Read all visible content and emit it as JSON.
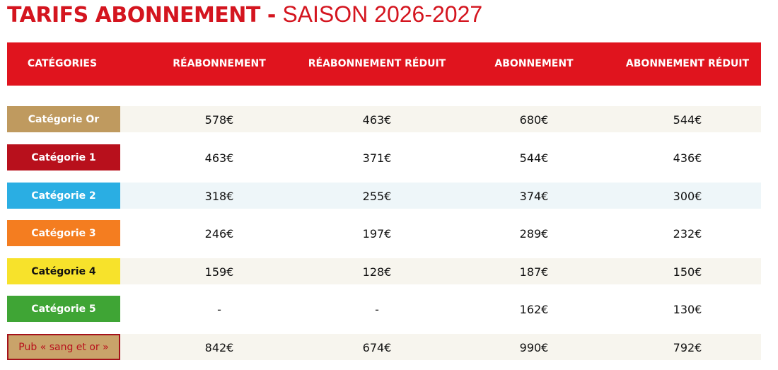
{
  "header": {
    "title": "TARIFS ABONNEMENT -",
    "subtitle": "SAISON 2026-2027"
  },
  "table": {
    "columns": [
      "CATÉGORIES",
      "RÉABONNEMENT",
      "RÉABONNEMENT RÉDUIT",
      "ABONNEMENT",
      "ABONNEMENT RÉDUIT"
    ],
    "rows": [
      {
        "category": "Catégorie Or",
        "color": "#bf9a5f",
        "prices": [
          "578€",
          "463€",
          "680€",
          "544€"
        ]
      },
      {
        "category": "Catégorie 1",
        "color": "#b8101c",
        "prices": [
          "463€",
          "371€",
          "544€",
          "436€"
        ]
      },
      {
        "category": "Catégorie 2",
        "color": "#2aaee3",
        "prices": [
          "318€",
          "255€",
          "374€",
          "300€"
        ]
      },
      {
        "category": "Catégorie 3",
        "color": "#f47d20",
        "prices": [
          "246€",
          "197€",
          "289€",
          "232€"
        ]
      },
      {
        "category": "Catégorie 4",
        "color": "#f7e22b",
        "prices": [
          "159€",
          "128€",
          "187€",
          "150€"
        ]
      },
      {
        "category": "Catégorie 5",
        "color": "#3fa535",
        "prices": [
          "-",
          "-",
          "162€",
          "130€"
        ]
      },
      {
        "category": "Pub « sang et or »",
        "color": "#c9a36a",
        "prices": [
          "842€",
          "674€",
          "990€",
          "792€"
        ]
      }
    ]
  }
}
